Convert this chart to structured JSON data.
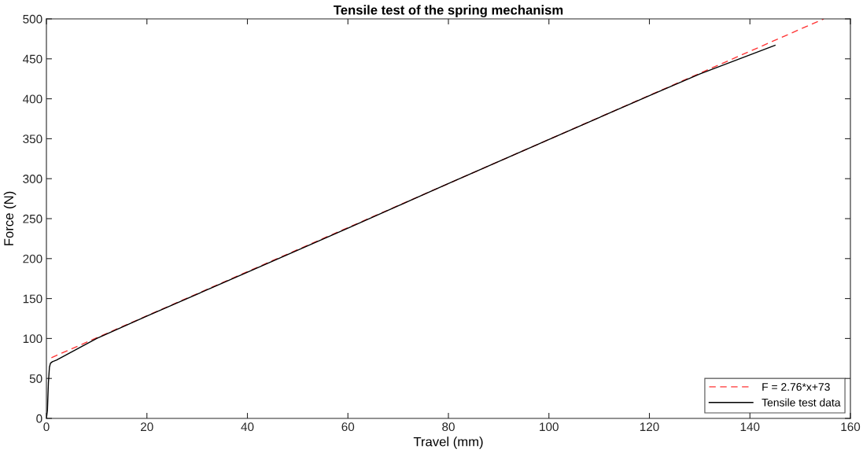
{
  "chart_data": {
    "type": "line",
    "title": "Tensile test of the spring mechanism",
    "xlabel": "Travel (mm)",
    "ylabel": "Force (N)",
    "series": [
      {
        "name": "F = 2.76*x+73",
        "color": "#ff0000",
        "line_style": "dashed",
        "x": [
          1,
          154.7
        ],
        "values": [
          76,
          500
        ]
      },
      {
        "name": "Tensile test data",
        "color": "#000000",
        "line_style": "solid",
        "x": [
          0,
          0.2,
          0.4,
          0.6,
          0.8,
          1.2,
          2,
          10,
          20,
          40,
          60,
          80,
          100,
          120,
          130,
          145
        ],
        "values": [
          0,
          10,
          45,
          64,
          69,
          71,
          73,
          100,
          128,
          183,
          238,
          294,
          349,
          404,
          431,
          467
        ]
      }
    ],
    "xlim": [
      0,
      160
    ],
    "xticks": [
      0,
      20,
      40,
      60,
      80,
      100,
      120,
      140,
      160
    ],
    "ylim": [
      0,
      500
    ],
    "yticks": [
      0,
      50,
      100,
      150,
      200,
      250,
      300,
      350,
      400,
      450,
      500
    ],
    "grid": false,
    "legend": "bottom right",
    "marker": "none"
  }
}
